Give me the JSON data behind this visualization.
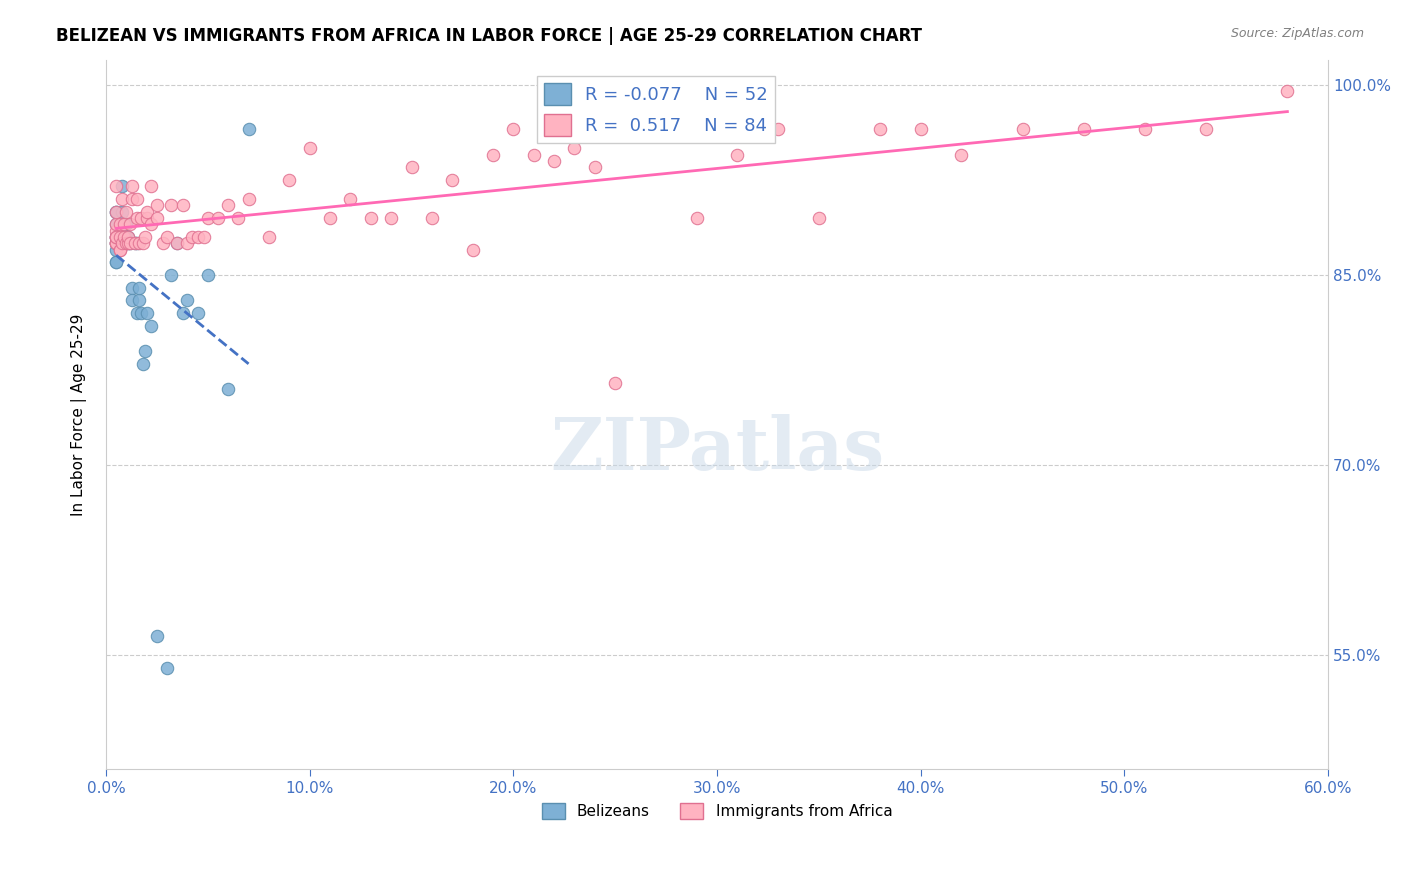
{
  "title": "BELIZEAN VS IMMIGRANTS FROM AFRICA IN LABOR FORCE | AGE 25-29 CORRELATION CHART",
  "source": "Source: ZipAtlas.com",
  "xlabel": "",
  "ylabel": "In Labor Force | Age 25-29",
  "xlim": [
    0.0,
    0.6
  ],
  "ylim": [
    0.46,
    1.02
  ],
  "yticks": [
    0.55,
    0.7,
    0.85,
    1.0
  ],
  "ytick_labels": [
    "55.0%",
    "70.0%",
    "85.0%",
    "100.0%"
  ],
  "xtick_labels": [
    "0.0%",
    "10.0%",
    "20.0%",
    "30.0%",
    "40.0%",
    "50.0%",
    "60.0%"
  ],
  "xticks": [
    0.0,
    0.1,
    0.2,
    0.3,
    0.4,
    0.5,
    0.6
  ],
  "belizean_color": "#7EB0D5",
  "africa_color": "#FFB3C1",
  "belizean_edge": "#5A8FB0",
  "africa_edge": "#E07090",
  "trendline_belizean_color": "#4472C4",
  "trendline_africa_color": "#FF69B4",
  "R_belizean": -0.077,
  "N_belizean": 52,
  "R_africa": 0.517,
  "N_africa": 84,
  "watermark": "ZIPatlas",
  "background_color": "#FFFFFF",
  "belizean_points_x": [
    0.005,
    0.005,
    0.005,
    0.005,
    0.005,
    0.005,
    0.005,
    0.005,
    0.005,
    0.005,
    0.007,
    0.007,
    0.007,
    0.007,
    0.007,
    0.007,
    0.007,
    0.008,
    0.008,
    0.008,
    0.009,
    0.009,
    0.009,
    0.01,
    0.01,
    0.01,
    0.01,
    0.011,
    0.011,
    0.012,
    0.013,
    0.013,
    0.014,
    0.015,
    0.015,
    0.016,
    0.016,
    0.017,
    0.018,
    0.019,
    0.02,
    0.022,
    0.025,
    0.03,
    0.032,
    0.035,
    0.038,
    0.04,
    0.045,
    0.05,
    0.06,
    0.07
  ],
  "belizean_points_y": [
    0.87,
    0.88,
    0.89,
    0.9,
    0.9,
    0.875,
    0.875,
    0.86,
    0.86,
    0.88,
    0.875,
    0.875,
    0.875,
    0.875,
    0.88,
    0.88,
    0.88,
    0.89,
    0.9,
    0.92,
    0.875,
    0.88,
    0.875,
    0.89,
    0.89,
    0.88,
    0.875,
    0.875,
    0.88,
    0.875,
    0.84,
    0.83,
    0.875,
    0.875,
    0.82,
    0.83,
    0.84,
    0.82,
    0.78,
    0.79,
    0.82,
    0.81,
    0.565,
    0.54,
    0.85,
    0.875,
    0.82,
    0.83,
    0.82,
    0.85,
    0.76,
    0.965
  ],
  "africa_points_x": [
    0.005,
    0.005,
    0.005,
    0.005,
    0.005,
    0.005,
    0.005,
    0.005,
    0.005,
    0.005,
    0.007,
    0.007,
    0.007,
    0.007,
    0.008,
    0.008,
    0.009,
    0.009,
    0.01,
    0.01,
    0.011,
    0.011,
    0.012,
    0.012,
    0.013,
    0.013,
    0.014,
    0.015,
    0.015,
    0.016,
    0.017,
    0.018,
    0.019,
    0.02,
    0.02,
    0.022,
    0.022,
    0.025,
    0.025,
    0.028,
    0.03,
    0.032,
    0.035,
    0.038,
    0.04,
    0.042,
    0.045,
    0.048,
    0.05,
    0.055,
    0.06,
    0.065,
    0.07,
    0.08,
    0.09,
    0.1,
    0.11,
    0.12,
    0.13,
    0.14,
    0.15,
    0.16,
    0.17,
    0.18,
    0.19,
    0.2,
    0.21,
    0.22,
    0.23,
    0.24,
    0.25,
    0.27,
    0.29,
    0.31,
    0.33,
    0.35,
    0.38,
    0.4,
    0.42,
    0.45,
    0.48,
    0.51,
    0.54,
    0.58
  ],
  "africa_points_y": [
    0.875,
    0.88,
    0.885,
    0.89,
    0.9,
    0.875,
    0.875,
    0.88,
    0.88,
    0.92,
    0.87,
    0.87,
    0.88,
    0.89,
    0.875,
    0.91,
    0.88,
    0.89,
    0.875,
    0.9,
    0.875,
    0.88,
    0.875,
    0.89,
    0.91,
    0.92,
    0.875,
    0.895,
    0.91,
    0.875,
    0.895,
    0.875,
    0.88,
    0.895,
    0.9,
    0.89,
    0.92,
    0.895,
    0.905,
    0.875,
    0.88,
    0.905,
    0.875,
    0.905,
    0.875,
    0.88,
    0.88,
    0.88,
    0.895,
    0.895,
    0.905,
    0.895,
    0.91,
    0.88,
    0.925,
    0.95,
    0.895,
    0.91,
    0.895,
    0.895,
    0.935,
    0.895,
    0.925,
    0.87,
    0.945,
    0.965,
    0.945,
    0.94,
    0.95,
    0.935,
    0.765,
    0.965,
    0.895,
    0.945,
    0.965,
    0.895,
    0.965,
    0.965,
    0.945,
    0.965,
    0.965,
    0.965,
    0.965,
    0.995
  ]
}
